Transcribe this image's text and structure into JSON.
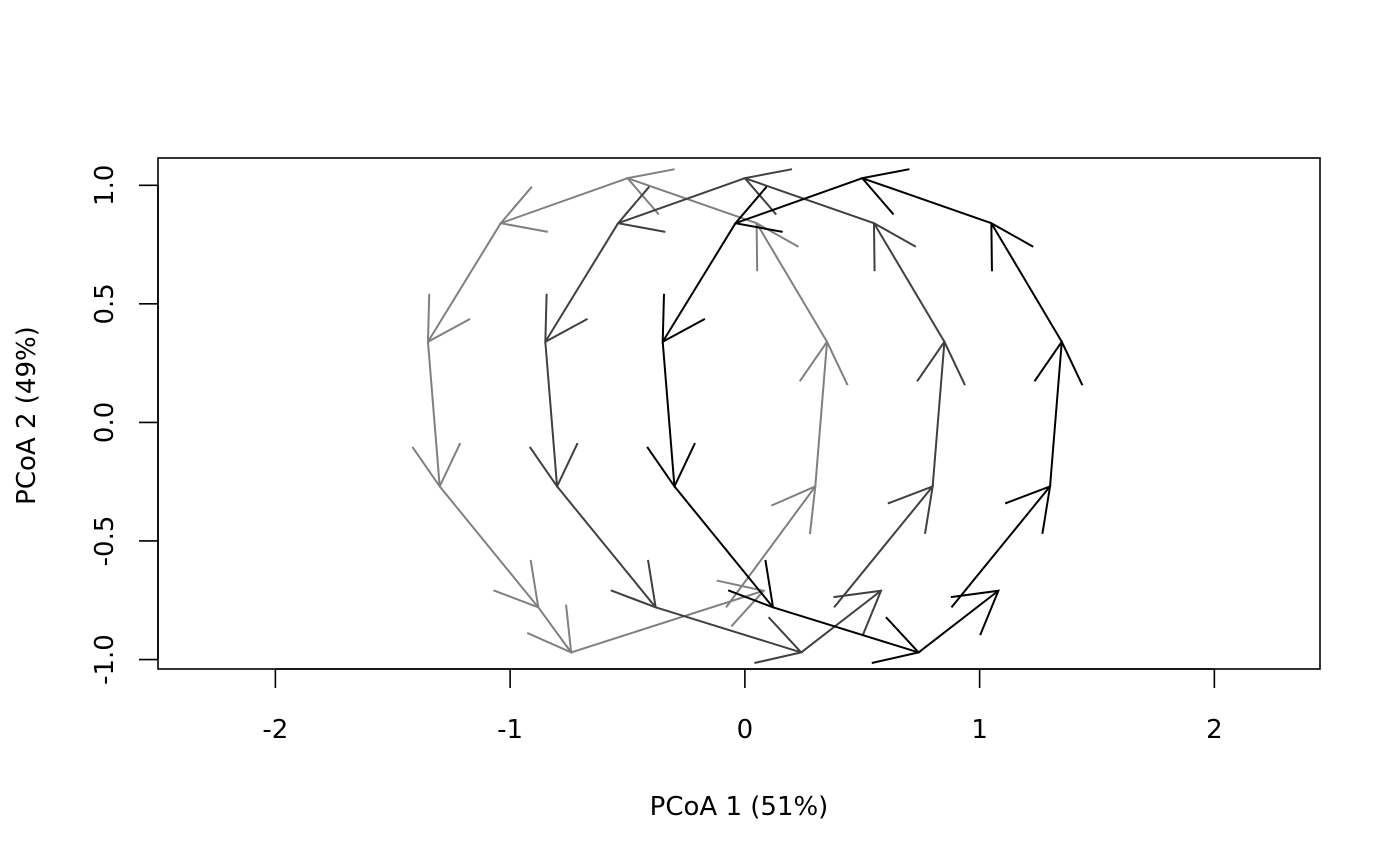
{
  "chart_data": {
    "type": "line",
    "title": "",
    "xlabel": "PCoA 1 (51%)",
    "ylabel": "PCoA 2 (49%)",
    "xlim": [
      -2.5,
      2.45
    ],
    "ylim": [
      -1.04,
      1.115
    ],
    "x_ticks": [
      -2,
      -1,
      0,
      1,
      2
    ],
    "x_tick_labels": [
      "-2",
      "-1",
      "0",
      "1",
      "2"
    ],
    "y_ticks": [
      -1.0,
      -0.5,
      0.0,
      0.5,
      1.0
    ],
    "y_tick_labels": [
      "-1.0",
      "-0.5",
      "0.0",
      "0.5",
      "1.0"
    ],
    "grid": false,
    "arrowheads": true,
    "series": [
      {
        "color": "#808080",
        "points": [
          {
            "x": -0.08,
            "y": -0.78
          },
          {
            "x": 0.3,
            "y": -0.27
          },
          {
            "x": 0.35,
            "y": 0.34
          },
          {
            "x": 0.05,
            "y": 0.84
          },
          {
            "x": -0.5,
            "y": 1.03
          },
          {
            "x": -1.04,
            "y": 0.84
          },
          {
            "x": -1.35,
            "y": 0.34
          },
          {
            "x": -1.3,
            "y": -0.27
          },
          {
            "x": -0.88,
            "y": -0.78
          },
          {
            "x": -0.74,
            "y": -0.97
          },
          {
            "x": 0.08,
            "y": -0.71
          }
        ]
      },
      {
        "color": "#404040",
        "points": [
          {
            "x": 0.38,
            "y": -0.78
          },
          {
            "x": 0.8,
            "y": -0.27
          },
          {
            "x": 0.85,
            "y": 0.34
          },
          {
            "x": 0.55,
            "y": 0.84
          },
          {
            "x": 0.0,
            "y": 1.03
          },
          {
            "x": -0.54,
            "y": 0.84
          },
          {
            "x": -0.85,
            "y": 0.34
          },
          {
            "x": -0.8,
            "y": -0.27
          },
          {
            "x": -0.38,
            "y": -0.78
          },
          {
            "x": 0.24,
            "y": -0.97
          },
          {
            "x": 0.58,
            "y": -0.71
          }
        ]
      },
      {
        "color": "#000000",
        "points": [
          {
            "x": 0.88,
            "y": -0.78
          },
          {
            "x": 1.3,
            "y": -0.27
          },
          {
            "x": 1.35,
            "y": 0.34
          },
          {
            "x": 1.05,
            "y": 0.84
          },
          {
            "x": 0.5,
            "y": 1.03
          },
          {
            "x": -0.04,
            "y": 0.84
          },
          {
            "x": -0.35,
            "y": 0.34
          },
          {
            "x": -0.3,
            "y": -0.27
          },
          {
            "x": 0.12,
            "y": -0.78
          },
          {
            "x": 0.74,
            "y": -0.97
          },
          {
            "x": 1.08,
            "y": -0.71
          }
        ]
      }
    ]
  }
}
